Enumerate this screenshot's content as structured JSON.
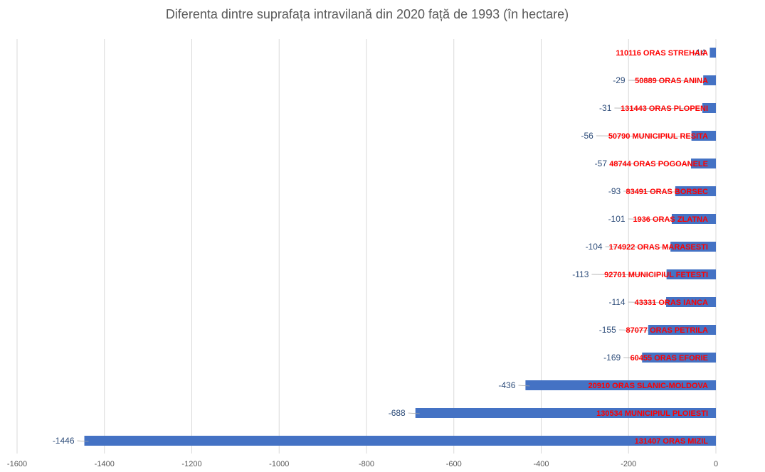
{
  "chart_data": {
    "type": "bar",
    "orientation": "horizontal",
    "title": "Diferenta dintre suprafața intravilană din 2020 față de 1993 (în hectare)",
    "xlabel": "",
    "ylabel": "",
    "xlim": [
      -1600,
      0
    ],
    "x_ticks": [
      -1600,
      -1400,
      -1200,
      -1000,
      -800,
      -600,
      -400,
      -200,
      0
    ],
    "grid": true,
    "categories": [
      "110116 ORAS STREHAIA",
      "50889 ORAS ANINA",
      "131443 ORAS PLOPENI",
      "50790 MUNICIPIUL RESITA",
      "48744 ORAS POGOANELE",
      "83491 ORAS BORSEC",
      "1936 ORAS ZLATNA",
      "174922 ORAS MARASESTI",
      "92701 MUNICIPIUL FETESTI",
      "43331 ORAS IANCA",
      "87077 ORAS PETRILA",
      "60455 ORAS EFORIE",
      "20910 ORAS SLANIC-MOLDOVA",
      "130534 MUNICIPIUL PLOIESTI",
      "131407 ORAS MIZIL"
    ],
    "values": [
      -14,
      -29,
      -31,
      -56,
      -57,
      -93,
      -101,
      -104,
      -113,
      -114,
      -155,
      -169,
      -436,
      -688,
      -1446
    ],
    "value_labels": [
      "-14",
      "-29",
      "-31",
      "-56",
      "-57",
      "-93",
      "-101",
      "-104",
      "-113",
      "-114",
      "-155",
      "-169",
      "-436",
      "-688",
      "-1446"
    ],
    "colors": {
      "bar": "#4472c4",
      "category_label": "#ff0000",
      "value_label": "#2e4d7a",
      "grid": "#d9d9d9"
    }
  }
}
